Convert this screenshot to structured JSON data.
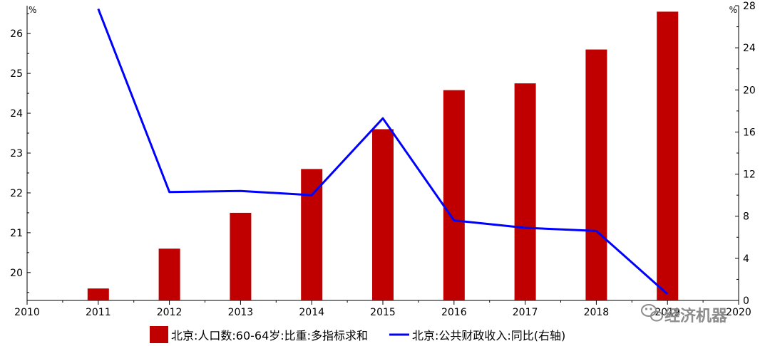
{
  "chart_data": {
    "type": "bar",
    "title": "",
    "x_ticks": [
      "2010",
      "2011",
      "2012",
      "2013",
      "2014",
      "2015",
      "2016",
      "2017",
      "2018",
      "2019",
      "2020"
    ],
    "categories": [
      "2011",
      "2012",
      "2013",
      "2014",
      "2015",
      "2016",
      "2017",
      "2018",
      "2019"
    ],
    "y_left": {
      "unit": "%",
      "ticks": [
        20,
        21,
        22,
        23,
        24,
        25,
        26
      ],
      "range": [
        19.3,
        26.7
      ]
    },
    "y_right": {
      "unit": "%",
      "ticks": [
        0,
        4,
        8,
        12,
        16,
        20,
        24,
        28
      ],
      "range": [
        0,
        28
      ]
    },
    "series": [
      {
        "name": "北京:人口数:60-64岁:比重:多指标求和",
        "type": "bar",
        "axis": "left",
        "color": "#c00000",
        "values": [
          19.6,
          20.6,
          21.5,
          22.6,
          23.6,
          24.58,
          24.75,
          25.6,
          26.55
        ]
      },
      {
        "name": "北京:公共财政收入:同比(右轴)",
        "type": "line",
        "axis": "right",
        "color": "#0000ff",
        "values": [
          27.7,
          10.3,
          10.4,
          10.0,
          17.3,
          7.6,
          6.9,
          6.6,
          0.6
        ]
      }
    ],
    "legend": "bottom-center",
    "grid": false
  },
  "watermark": {
    "icon": "wechat-icon",
    "text": "经济机器"
  }
}
